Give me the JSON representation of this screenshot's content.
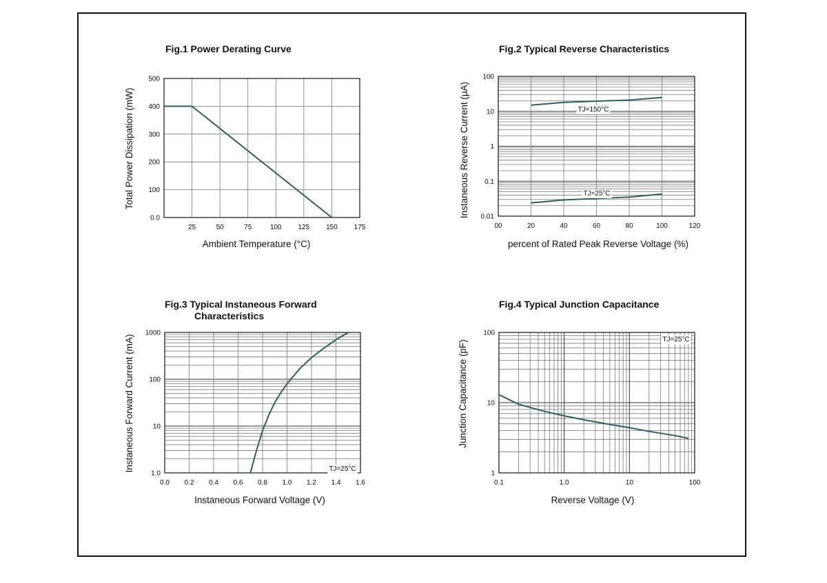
{
  "chart_data": [
    {
      "type": "line",
      "title": "Fig.1  Power Derating Curve",
      "xlabel": "Ambient Temperature (°C)",
      "ylabel": "Total Power Dissipation  (mW)",
      "x_ticks": [
        "25",
        "50",
        "75",
        "100",
        "125",
        "150",
        "175"
      ],
      "y_ticks": [
        "0.0",
        "100",
        "200",
        "300",
        "400",
        "500"
      ],
      "xlim": [
        0,
        175
      ],
      "ylim": [
        0,
        500
      ],
      "grid": true,
      "series": [
        {
          "x": [
            0,
            25,
            150
          ],
          "y": [
            400,
            400,
            0
          ]
        }
      ]
    },
    {
      "type": "line",
      "title": "Fig.2  Typical Reverse Characteristics",
      "xlabel": "percent of Rated  Peak Reverse Voltage (%)",
      "ylabel": "Instaneous Reverse Current  (μA)",
      "x_ticks": [
        "00",
        "20",
        "40",
        "60",
        "80",
        "100",
        "120"
      ],
      "y_ticks": [
        "0.01",
        "0.1",
        "1",
        "10",
        "100"
      ],
      "xlim": [
        0,
        120
      ],
      "ylim": [
        0.01,
        100
      ],
      "yscale": "log",
      "grid": true,
      "series": [
        {
          "name": "TJ=150°C",
          "x": [
            20,
            40,
            60,
            80,
            100
          ],
          "y": [
            15,
            18,
            19.5,
            21,
            25
          ]
        },
        {
          "name": "TJ=25°C",
          "x": [
            20,
            40,
            60,
            80,
            100
          ],
          "y": [
            0.024,
            0.029,
            0.032,
            0.035,
            0.043
          ]
        }
      ],
      "annotations": [
        "TJ=150°C",
        "TJ=25°C"
      ]
    },
    {
      "type": "line",
      "title": "Fig.3  Typical Instaneous Forward",
      "title_line2": "Characteristics",
      "xlabel": "Instaneous Forward Voltage (V)",
      "ylabel": "Instaneous Forward Current (mA)",
      "x_ticks": [
        "0.0",
        "0.2",
        "0.4",
        "0.6",
        "0.8",
        "1.0",
        "1.2",
        "1.4",
        "1.6"
      ],
      "y_ticks": [
        "1.0",
        "10",
        "100",
        "1000"
      ],
      "xlim": [
        0,
        1.6
      ],
      "ylim": [
        1,
        1000
      ],
      "yscale": "log",
      "grid": true,
      "series": [
        {
          "x": [
            0.7,
            0.75,
            0.8,
            0.85,
            0.9,
            0.95,
            1.0,
            1.1,
            1.2,
            1.3,
            1.4,
            1.5
          ],
          "y": [
            1,
            3,
            8,
            17,
            32,
            52,
            80,
            165,
            290,
            460,
            700,
            1000
          ]
        }
      ],
      "annotations": [
        "TJ=25°C"
      ]
    },
    {
      "type": "line",
      "title": "Fig.4  Typical Junction Capacitance",
      "xlabel": "Reverse  Voltage (V)",
      "ylabel": "Junction Capacitance (pF)",
      "x_ticks": [
        "0.1",
        "1.0",
        "10",
        "100"
      ],
      "y_ticks": [
        "1",
        "10",
        "100"
      ],
      "xlim": [
        0.1,
        100
      ],
      "ylim": [
        1,
        100
      ],
      "xscale": "log",
      "yscale": "log",
      "grid": true,
      "series": [
        {
          "x": [
            0.1,
            0.2,
            0.5,
            1,
            2,
            5,
            10,
            20,
            50,
            80
          ],
          "y": [
            13,
            9.5,
            7.5,
            6.5,
            5.7,
            4.9,
            4.4,
            3.9,
            3.4,
            3.1
          ]
        }
      ],
      "annotations": [
        "TJ=25°C"
      ]
    }
  ]
}
